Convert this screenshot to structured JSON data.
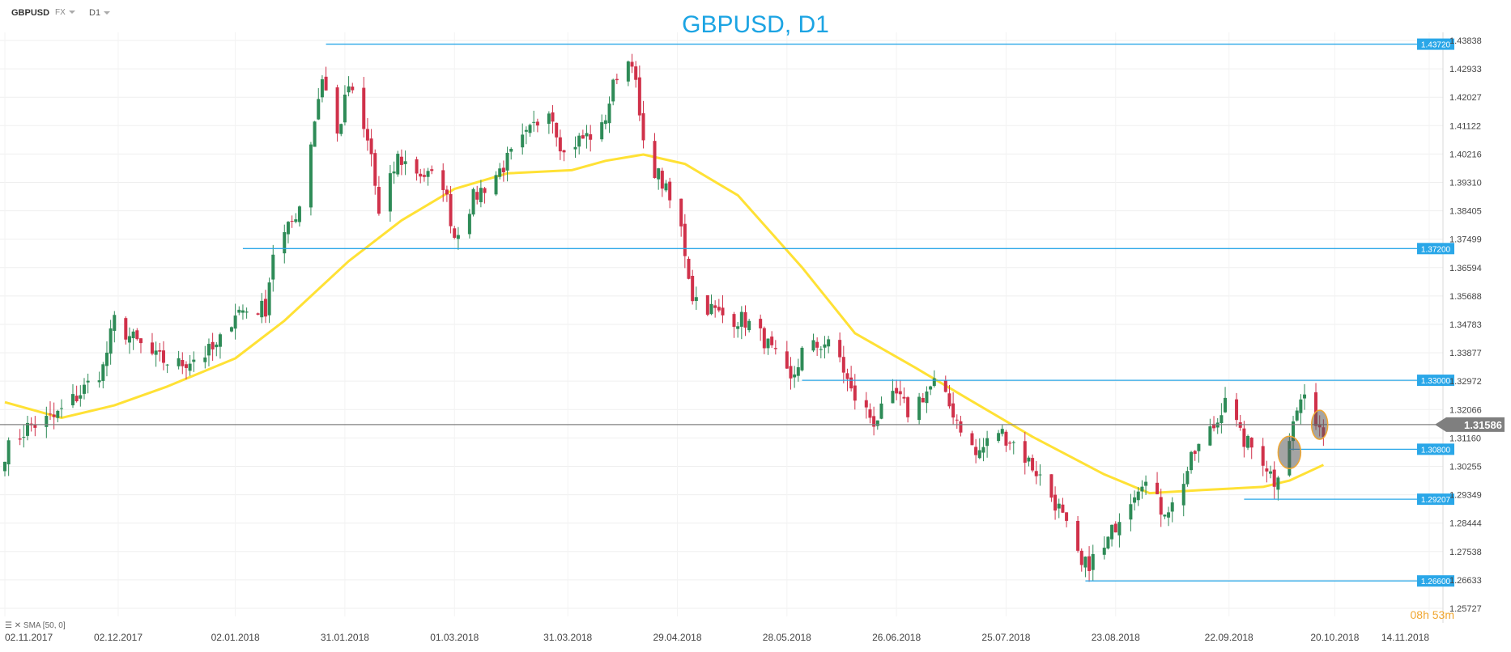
{
  "header": {
    "symbol": "GBPUSD",
    "source": "FX",
    "timeframe": "D1"
  },
  "title": "GBPUSD, D1",
  "indicator_label": "SMA [50, 0]",
  "countdown": "08h 53m",
  "colors": {
    "up": "#2e8b57",
    "down": "#d0314a",
    "sma": "#ffe135",
    "level": "#2aa7e8",
    "current": "#808080",
    "title": "#1ca4e3"
  },
  "chart_data": {
    "type": "candlestick",
    "title": "GBPUSD, D1",
    "y_ticks": [
      "1.43838",
      "1.42933",
      "1.42027",
      "1.41122",
      "1.40216",
      "1.39310",
      "1.38405",
      "1.37499",
      "1.36594",
      "1.35688",
      "1.34783",
      "1.33877",
      "1.32972",
      "1.32066",
      "1.31160",
      "1.30255",
      "1.29349",
      "1.28444",
      "1.27538",
      "1.26633",
      "1.25727"
    ],
    "x_ticks": [
      "02.11.2017",
      "02.12.2017",
      "02.01.2018",
      "31.01.2018",
      "01.03.2018",
      "31.03.2018",
      "29.04.2018",
      "28.05.2018",
      "26.06.2018",
      "25.07.2018",
      "23.08.2018",
      "22.09.2018",
      "20.10.2018",
      "14.11.2018"
    ],
    "ylim": [
      1.25727,
      1.43838
    ],
    "current_price": 1.31586,
    "horizontal_levels": [
      {
        "label": "1.43720",
        "value": 1.4372,
        "from": "2018-01-26"
      },
      {
        "label": "1.37200",
        "value": 1.372,
        "from": "2018-01-04"
      },
      {
        "label": "1.33000",
        "value": 1.33,
        "from": "2018-06-01"
      },
      {
        "label": "1.30800",
        "value": 1.308,
        "from": "2018-10-08"
      },
      {
        "label": "1.29207",
        "value": 1.29207,
        "from": "2018-09-26"
      },
      {
        "label": "1.26600",
        "value": 1.266,
        "from": "2018-08-15"
      }
    ],
    "series": [
      {
        "name": "GBPUSD",
        "type": "ohlc",
        "daily_close_waypoints": [
          [
            "2017-11-02",
            1.307
          ],
          [
            "2017-11-08",
            1.315
          ],
          [
            "2017-11-15",
            1.318
          ],
          [
            "2017-11-22",
            1.326
          ],
          [
            "2017-11-28",
            1.334
          ],
          [
            "2017-12-01",
            1.349
          ],
          [
            "2017-12-05",
            1.344
          ],
          [
            "2017-12-12",
            1.337
          ],
          [
            "2017-12-18",
            1.335
          ],
          [
            "2017-12-28",
            1.34
          ],
          [
            "2018-01-02",
            1.352
          ],
          [
            "2018-01-10",
            1.353
          ],
          [
            "2018-01-12",
            1.371
          ],
          [
            "2018-01-16",
            1.378
          ],
          [
            "2018-01-19",
            1.386
          ],
          [
            "2018-01-25",
            1.427
          ],
          [
            "2018-01-29",
            1.408
          ],
          [
            "2018-02-01",
            1.424
          ],
          [
            "2018-02-07",
            1.402
          ],
          [
            "2018-02-09",
            1.382
          ],
          [
            "2018-02-14",
            1.401
          ],
          [
            "2018-02-20",
            1.396
          ],
          [
            "2018-02-26",
            1.393
          ],
          [
            "2018-03-01",
            1.376
          ],
          [
            "2018-03-06",
            1.388
          ],
          [
            "2018-03-13",
            1.397
          ],
          [
            "2018-03-21",
            1.409
          ],
          [
            "2018-03-26",
            1.418
          ],
          [
            "2018-03-30",
            1.402
          ],
          [
            "2018-04-02",
            1.406
          ],
          [
            "2018-04-09",
            1.41
          ],
          [
            "2018-04-13",
            1.428
          ],
          [
            "2018-04-17",
            1.433
          ],
          [
            "2018-04-20",
            1.404
          ],
          [
            "2018-04-25",
            1.393
          ],
          [
            "2018-04-30",
            1.378
          ],
          [
            "2018-05-03",
            1.357
          ],
          [
            "2018-05-10",
            1.351
          ],
          [
            "2018-05-17",
            1.349
          ],
          [
            "2018-05-22",
            1.343
          ],
          [
            "2018-05-29",
            1.329
          ],
          [
            "2018-06-01",
            1.339
          ],
          [
            "2018-06-07",
            1.342
          ],
          [
            "2018-06-11",
            1.337
          ],
          [
            "2018-06-14",
            1.326
          ],
          [
            "2018-06-20",
            1.317
          ],
          [
            "2018-06-26",
            1.325
          ],
          [
            "2018-06-29",
            1.32
          ],
          [
            "2018-07-06",
            1.329
          ],
          [
            "2018-07-11",
            1.32
          ],
          [
            "2018-07-17",
            1.306
          ],
          [
            "2018-07-23",
            1.314
          ],
          [
            "2018-07-27",
            1.31
          ],
          [
            "2018-08-02",
            1.301
          ],
          [
            "2018-08-08",
            1.289
          ],
          [
            "2018-08-14",
            1.27
          ],
          [
            "2018-08-20",
            1.276
          ],
          [
            "2018-08-24",
            1.287
          ],
          [
            "2018-08-30",
            1.299
          ],
          [
            "2018-09-04",
            1.289
          ],
          [
            "2018-09-07",
            1.29
          ],
          [
            "2018-09-13",
            1.307
          ],
          [
            "2018-09-19",
            1.317
          ],
          [
            "2018-09-21",
            1.326
          ],
          [
            "2018-09-25",
            1.312
          ],
          [
            "2018-10-01",
            1.305
          ],
          [
            "2018-10-04",
            1.298
          ],
          [
            "2018-10-08",
            1.312
          ],
          [
            "2018-10-11",
            1.324
          ],
          [
            "2018-10-15",
            1.318
          ],
          [
            "2018-10-17",
            1.313
          ]
        ]
      },
      {
        "name": "SMA [50, 0]",
        "type": "line",
        "waypoints": [
          [
            "2017-11-02",
            1.323
          ],
          [
            "2017-11-17",
            1.318
          ],
          [
            "2017-12-01",
            1.322
          ],
          [
            "2017-12-15",
            1.328
          ],
          [
            "2018-01-02",
            1.337
          ],
          [
            "2018-01-15",
            1.349
          ],
          [
            "2018-02-01",
            1.368
          ],
          [
            "2018-02-15",
            1.381
          ],
          [
            "2018-03-01",
            1.391
          ],
          [
            "2018-03-15",
            1.396
          ],
          [
            "2018-04-01",
            1.397
          ],
          [
            "2018-04-10",
            1.4
          ],
          [
            "2018-04-20",
            1.402
          ],
          [
            "2018-05-01",
            1.399
          ],
          [
            "2018-05-15",
            1.389
          ],
          [
            "2018-06-01",
            1.366
          ],
          [
            "2018-06-15",
            1.345
          ],
          [
            "2018-07-01",
            1.334
          ],
          [
            "2018-07-15",
            1.324
          ],
          [
            "2018-08-01",
            1.312
          ],
          [
            "2018-08-20",
            1.3
          ],
          [
            "2018-09-01",
            1.294
          ],
          [
            "2018-09-15",
            1.295
          ],
          [
            "2018-10-01",
            1.296
          ],
          [
            "2018-10-08",
            1.298
          ],
          [
            "2018-10-17",
            1.303
          ]
        ]
      }
    ]
  }
}
